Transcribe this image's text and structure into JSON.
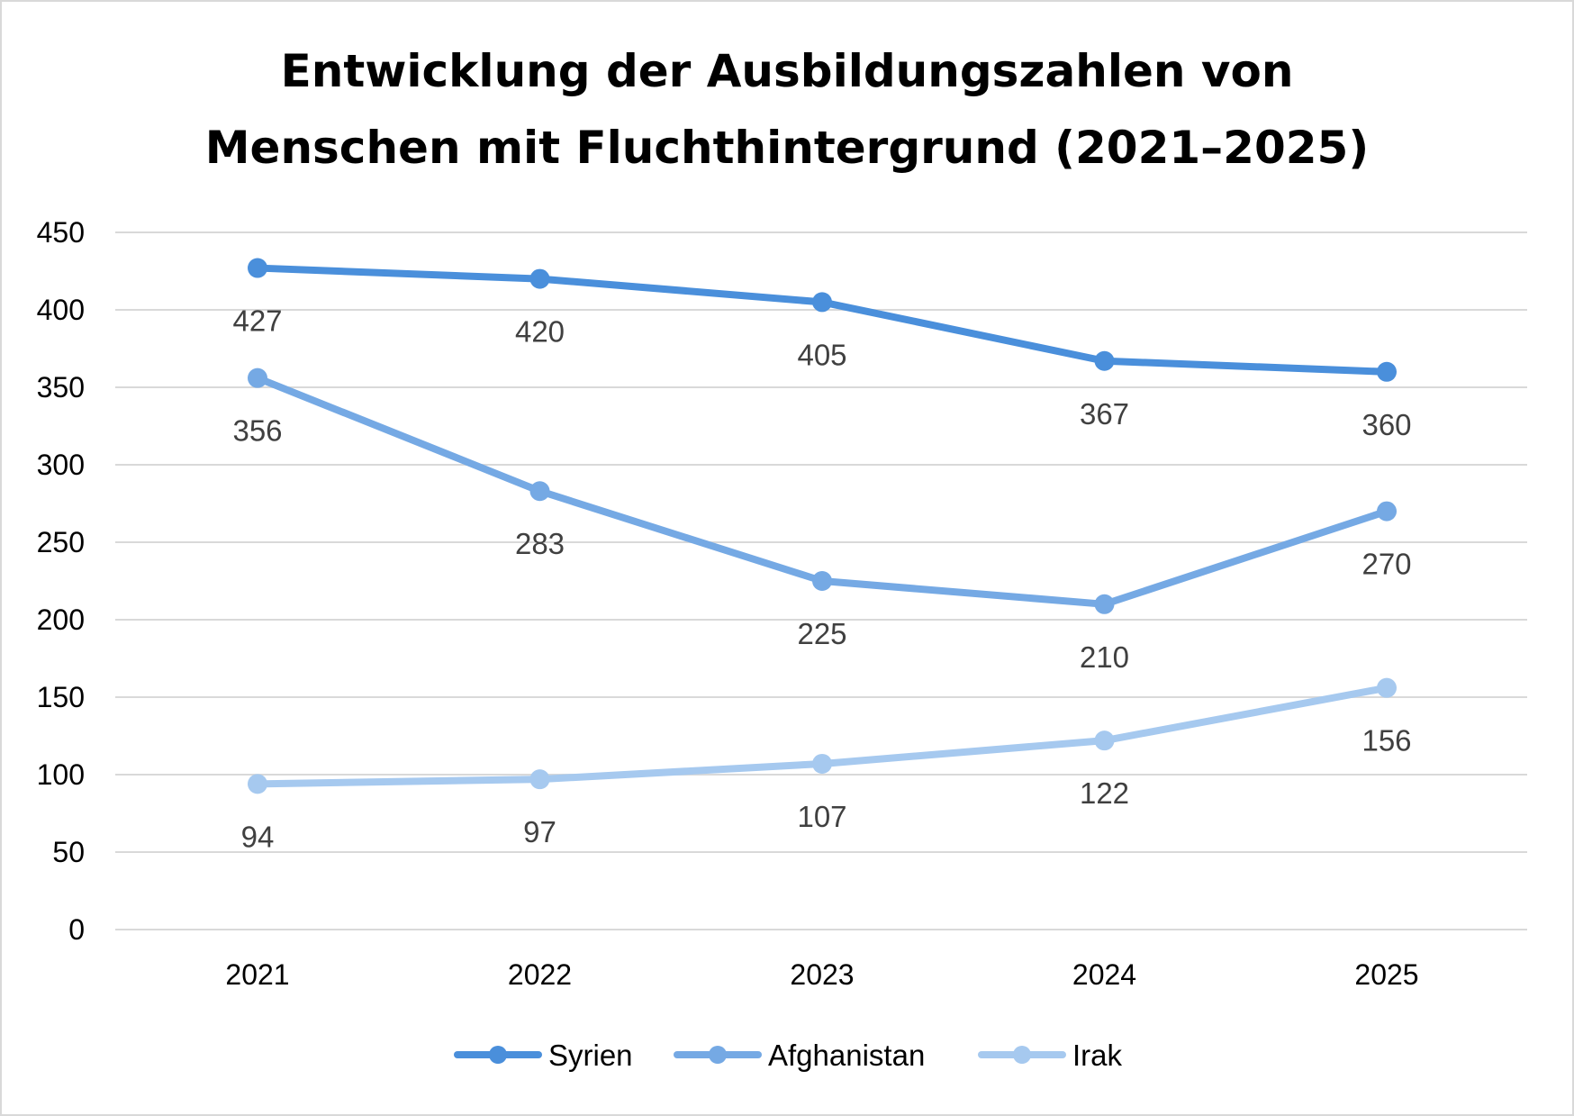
{
  "chart_data": {
    "type": "line",
    "title": [
      "Entwicklung der Ausbildungszahlen von",
      "Menschen mit Fluchthintergrund (2021–2025)"
    ],
    "categories": [
      "2021",
      "2022",
      "2023",
      "2024",
      "2025"
    ],
    "series": [
      {
        "name": "Syrien",
        "values": [
          427,
          420,
          405,
          367,
          360
        ],
        "color": "#4A8FDB"
      },
      {
        "name": "Afghanistan",
        "values": [
          356,
          283,
          225,
          210,
          270
        ],
        "color": "#75A9E4"
      },
      {
        "name": "Irak",
        "values": [
          94,
          97,
          107,
          122,
          156
        ],
        "color": "#A6C9EF"
      }
    ],
    "y_ticks": [
      "0",
      "50",
      "100",
      "150",
      "200",
      "250",
      "300",
      "350",
      "400",
      "450"
    ],
    "ylim": [
      0,
      450
    ],
    "grid": true,
    "data_labels": "below",
    "legend": "bottom",
    "xlabel": "",
    "ylabel": ""
  },
  "colors": {
    "gridline": "#D9D9D9",
    "border": "#D9D9D9"
  }
}
